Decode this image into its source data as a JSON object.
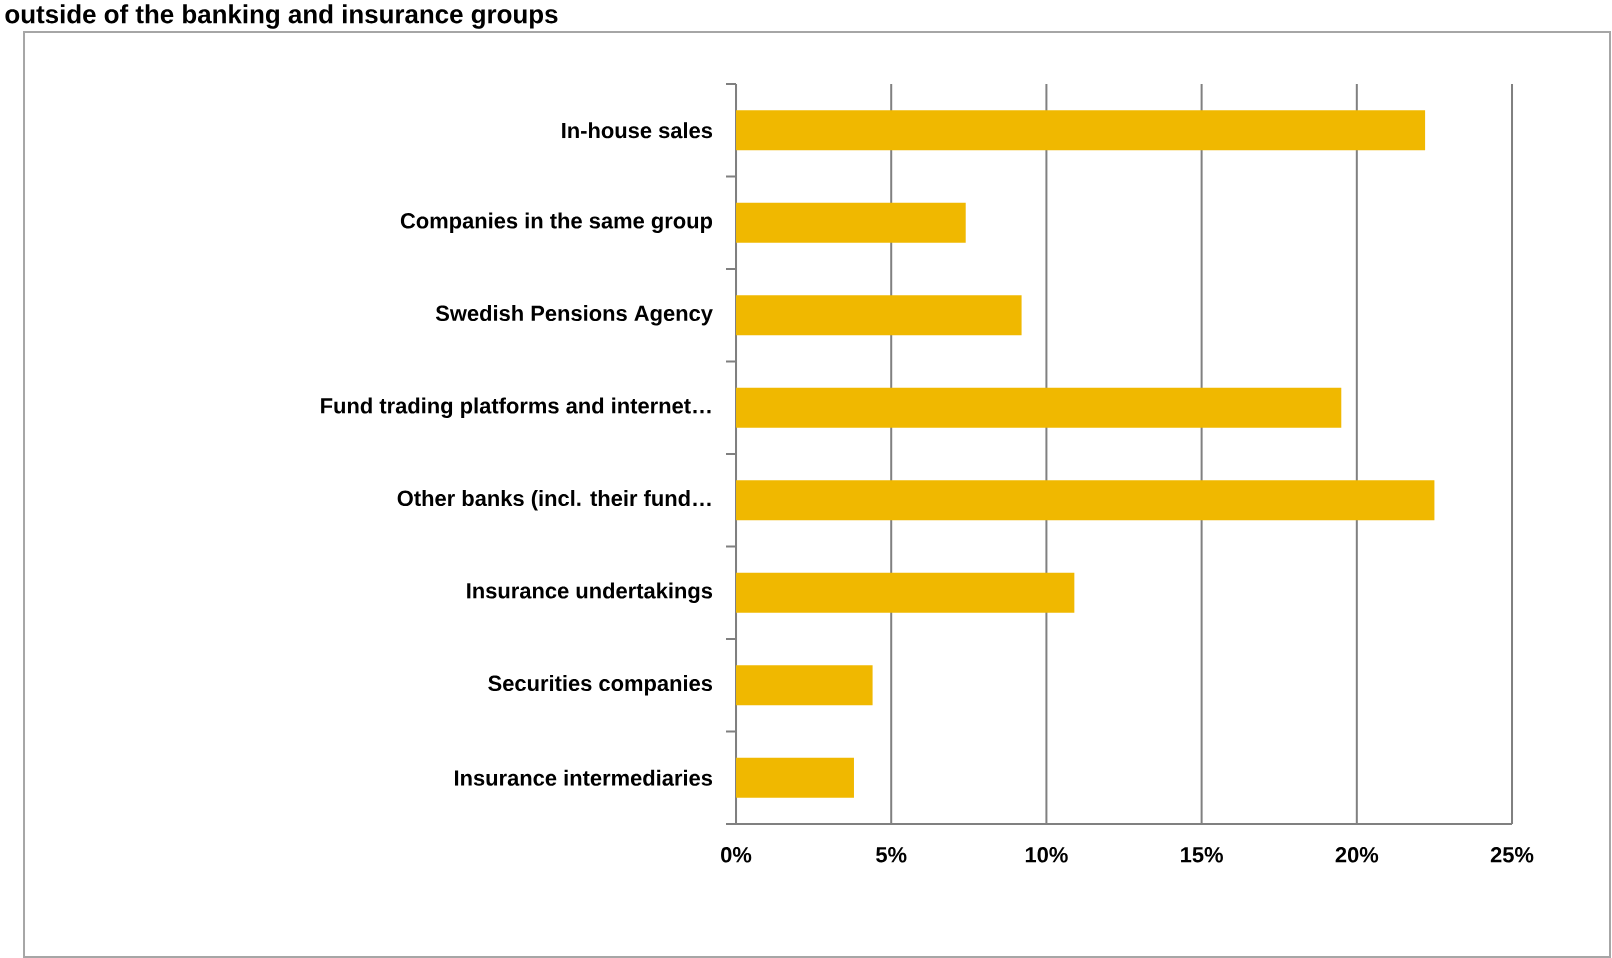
{
  "chart_data": {
    "type": "bar",
    "orientation": "horizontal",
    "title": "outside of the banking and insurance groups",
    "categories": [
      "In-house sales",
      "Companies in the same group",
      "Swedish Pensions Agency",
      "Fund trading platforms and internet…",
      "Other banks (incl. their fund…",
      "Insurance undertakings",
      "Securities companies",
      "Insurance intermediaries"
    ],
    "values": [
      22.2,
      7.4,
      9.2,
      19.5,
      22.5,
      10.9,
      4.4,
      3.8
    ],
    "color": "#f0b800",
    "xlim": [
      0,
      25
    ],
    "xticks": [
      {
        "value": 0,
        "label": "0%"
      },
      {
        "value": 5,
        "label": "5%"
      },
      {
        "value": 10,
        "label": "10%"
      },
      {
        "value": 15,
        "label": "15%"
      },
      {
        "value": 20,
        "label": "20%"
      },
      {
        "value": 25,
        "label": "25%"
      }
    ],
    "grid": "x"
  }
}
